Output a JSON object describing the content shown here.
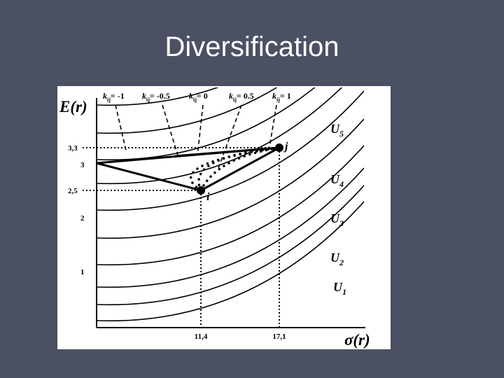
{
  "title": "Diversification",
  "chart": {
    "y_label": "E(r)",
    "x_label": "σ(r)",
    "y_ticks": [
      "3,3",
      "3",
      "2,5",
      "2",
      "1"
    ],
    "x_ticks": [
      "11,4",
      "17,1"
    ],
    "points": [
      "i",
      "j"
    ],
    "curves": [
      {
        "symbol": "U",
        "subscript": "5"
      },
      {
        "symbol": "U",
        "subscript": "4"
      },
      {
        "symbol": "U",
        "subscript": "3"
      },
      {
        "symbol": "U",
        "subscript": "2"
      },
      {
        "symbol": "U",
        "subscript": "1"
      }
    ],
    "correlations": [
      {
        "symbol": "k",
        "subscript": "ij",
        "text": "= -1"
      },
      {
        "symbol": "k",
        "subscript": "ij",
        "text": "= -0.5"
      },
      {
        "symbol": "k",
        "subscript": "ij",
        "text": "= 0"
      },
      {
        "symbol": "k",
        "subscript": "ij",
        "text": "= 0.5"
      },
      {
        "symbol": "k",
        "subscript": "ij",
        "text": "= 1"
      }
    ]
  }
}
